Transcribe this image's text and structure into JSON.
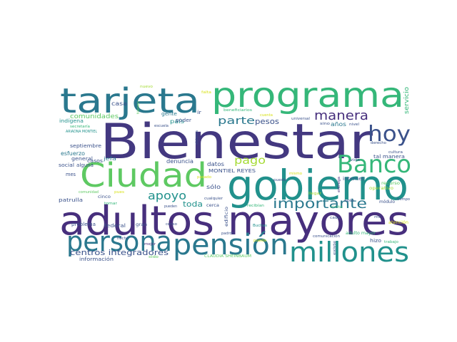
{
  "palette": {
    "indigo": "#433880",
    "purple": "#472f7d",
    "blue": "#3b528b",
    "teal": "#21918c",
    "teal_dark": "#2a788e",
    "green": "#35b779",
    "green_light": "#5ec962",
    "lime": "#a5db36",
    "yellow": "#d8e219"
  },
  "words": [
    "Bienestar",
    "adultos mayores",
    "gobierno",
    "programa",
    "tarjeta",
    "Ciudad",
    "pensión",
    "millones",
    "persona",
    "Banco",
    "hoy",
    "importante",
    "manera",
    "apoyo",
    "parte",
    "pago",
    "pesos",
    "centros integradores",
    "comunidades",
    "toda",
    "casa",
    "gente",
    "ir",
    "país",
    "poder",
    "denuncia",
    "datos",
    "MONTIEL REYES",
    "sólo",
    "servicio",
    "internet",
    "esfuerzo",
    "casos",
    "jefa",
    "septiembre",
    "indígena",
    "general",
    "alguna",
    "social",
    "mes",
    "patrulla",
    "problema",
    "federal",
    "información",
    "cinco",
    "gran",
    "hecho",
    "mejor",
    "nuevo",
    "secretaría",
    "ARIADNA MONTIEL",
    "escuela",
    "censo",
    "tal manera",
    "cultura",
    "derecho",
    "recurso",
    "operativo",
    "hizo",
    "adulto mayor",
    "comunicación",
    "módulo",
    "tiempo",
    "CLAUDIA SHEINBAUM",
    "padrón",
    "edificio",
    "cerca",
    "pueden",
    "recibían",
    "existe",
    "trabajo",
    "años",
    "nivel",
    "sino",
    "universal",
    "cuenta",
    "beneficiarios",
    "pueda",
    "sido",
    "Buchas",
    "tienen",
    "cualquier",
    "comunidad",
    "solo",
    "cada",
    "puede",
    "pasado",
    "sistema",
    "falta",
    "tomar",
    "pues",
    "entrega",
    "llegar",
    "mil",
    "atención",
    "vida",
    "visita",
    "mismo"
  ]
}
